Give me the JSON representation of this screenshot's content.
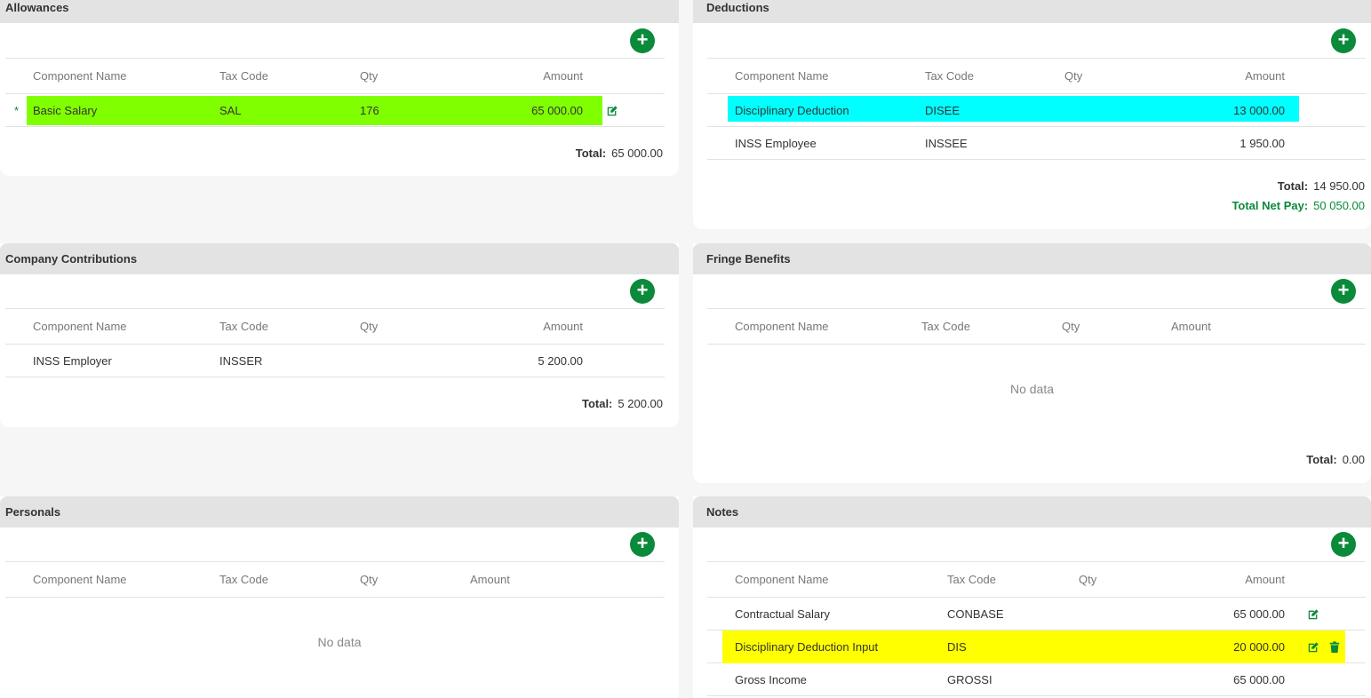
{
  "columns": {
    "name": "Component Name",
    "tax": "Tax Code",
    "qty": "Qty",
    "amount": "Amount"
  },
  "colors": {
    "accent": "#0a8a3a",
    "highlight_green": "#80ff00",
    "highlight_cyan": "#00ffff",
    "highlight_yellow": "#ffff00"
  },
  "allowances": {
    "title": "Allowances",
    "rows": [
      {
        "marker": "*",
        "name": "Basic Salary",
        "tax": "SAL",
        "qty": "176",
        "amount": "65 000.00"
      }
    ],
    "total_label": "Total:",
    "total_value": "65 000.00"
  },
  "deductions": {
    "title": "Deductions",
    "rows": [
      {
        "name": "Disciplinary Deduction",
        "tax": "DISEE",
        "qty": "",
        "amount": "13 000.00"
      },
      {
        "name": "INSS Employee",
        "tax": "INSSEE",
        "qty": "",
        "amount": "1 950.00"
      }
    ],
    "total_label": "Total:",
    "total_value": "14 950.00",
    "netpay_label": "Total Net Pay:",
    "netpay_value": "50 050.00"
  },
  "company_contributions": {
    "title": "Company Contributions",
    "rows": [
      {
        "name": "INSS Employer",
        "tax": "INSSER",
        "qty": "",
        "amount": "5 200.00"
      }
    ],
    "total_label": "Total:",
    "total_value": "5 200.00"
  },
  "fringe_benefits": {
    "title": "Fringe Benefits",
    "empty": "No data",
    "total_label": "Total:",
    "total_value": "0.00"
  },
  "personals": {
    "title": "Personals",
    "empty": "No data"
  },
  "notes": {
    "title": "Notes",
    "rows": [
      {
        "name": "Contractual Salary",
        "tax": "CONBASE",
        "qty": "",
        "amount": "65 000.00"
      },
      {
        "name": "Disciplinary Deduction Input",
        "tax": "DIS",
        "qty": "",
        "amount": "20 000.00"
      },
      {
        "name": "Gross Income",
        "tax": "GROSSI",
        "qty": "",
        "amount": "65 000.00"
      }
    ]
  },
  "icons": {
    "add": "plus-circle-icon",
    "edit": "edit-icon",
    "delete": "trash-icon"
  },
  "add_symbol": "+"
}
